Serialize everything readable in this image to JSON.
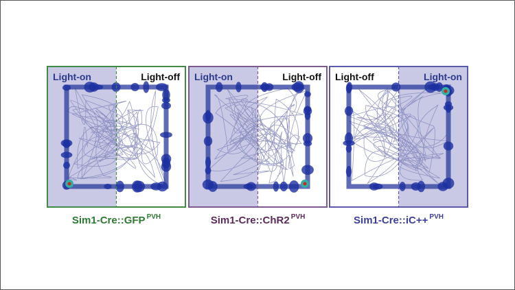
{
  "panels": [
    {
      "left": "Light-on",
      "right": "Light-off",
      "caption": "Sim1-Cre::GFP",
      "superscript": "PVH"
    },
    {
      "left": "Light-on",
      "right": "Light-off",
      "caption": "Sim1-Cre::ChR2",
      "superscript": "PVH"
    },
    {
      "left": "Light-off",
      "right": "Light-on",
      "caption": "Sim1-Cre::iC++",
      "superscript": "PVH"
    }
  ]
}
